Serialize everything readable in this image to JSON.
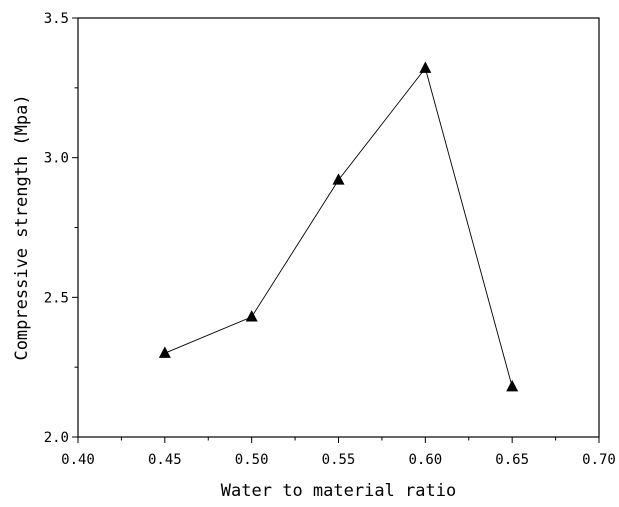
{
  "chart_data": {
    "type": "line",
    "marker": "filled-triangle",
    "line_color": "#000000",
    "marker_color": "#000000",
    "grid": false,
    "xlabel": "Water to material ratio",
    "ylabel": "Compressive strength (Mpa)",
    "xlim": [
      0.4,
      0.7
    ],
    "ylim": [
      2.0,
      3.5
    ],
    "x_ticks": [
      "0.40",
      "0.45",
      "0.50",
      "0.55",
      "0.60",
      "0.65",
      "0.70"
    ],
    "y_ticks": [
      "2.0",
      "2.5",
      "3.0",
      "3.5"
    ],
    "series": [
      {
        "x": [
          0.45,
          0.5,
          0.55,
          0.6,
          0.65
        ],
        "values": [
          2.3,
          2.43,
          2.92,
          3.32,
          2.18
        ]
      }
    ]
  }
}
